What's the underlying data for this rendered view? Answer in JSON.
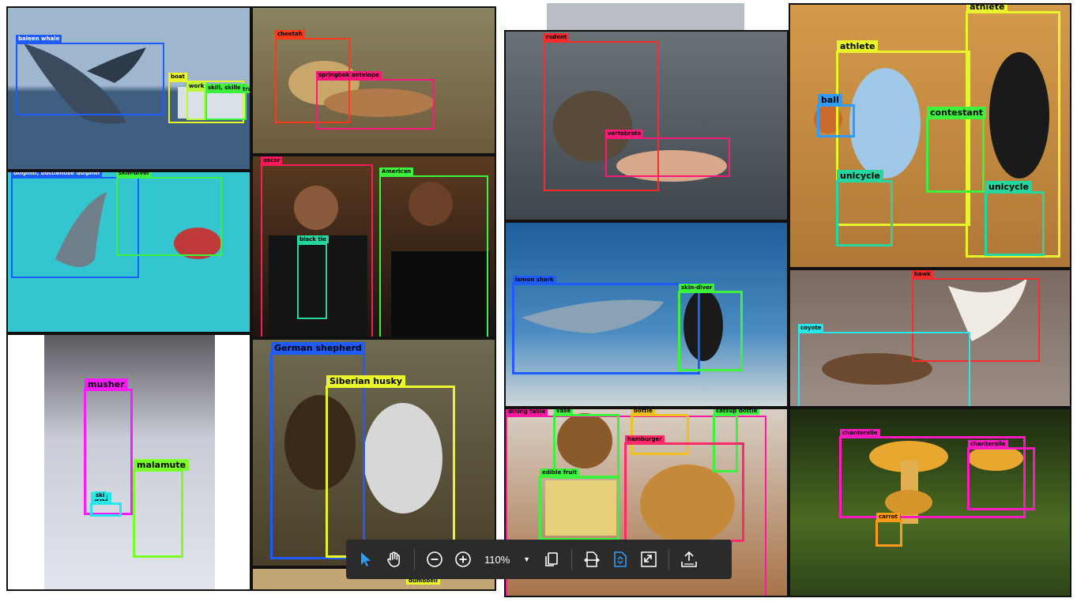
{
  "canvas": {
    "background": "#ffffff"
  },
  "images": {
    "whale": {
      "scene": "#4a6c8f",
      "sky": "#9fb6cf",
      "labels": {
        "baleen_whale": "baleen whale",
        "boat": "boat",
        "work": "work",
        "skill": "skill, skilled",
        "trade": "trade"
      }
    },
    "cheetah": {
      "scene": "#7d6f4e",
      "labels": {
        "cheetah": "cheetah",
        "antelope": "springbok antelope"
      }
    },
    "dolphin": {
      "scene": "#34c6d0",
      "labels": {
        "dolphin": "dolphin, bottlenose dolphin",
        "skin_diver": "skin-diver"
      }
    },
    "obama": {
      "scene": "#3a2a20",
      "labels": {
        "oscar": "oscar",
        "american": "American",
        "black_tie": "black tie"
      }
    },
    "otter": {
      "scene": "#4d5358",
      "labels": {
        "rodent": "rodent",
        "vertebrate": "vertebrate"
      }
    },
    "basketball": {
      "scene": "#c98a3c",
      "labels": {
        "athlete_right": "athlete",
        "athlete_left": "athlete",
        "ball": "ball",
        "contestant": "contestant",
        "unicycle_left": "unicycle",
        "unicycle_right": "unicycle"
      }
    },
    "shark": {
      "scene": "#2f77b0",
      "labels": {
        "lemon_shark": "lemon shark",
        "skin_diver": "skin-diver"
      }
    },
    "hawk": {
      "scene": "#8a7a70",
      "labels": {
        "hawk": "hawk",
        "coyote": "coyote"
      }
    },
    "musher": {
      "scene": "#c9ccd6",
      "labels": {
        "musher": "musher",
        "malamute": "malamute",
        "ski": "ski",
        "ski_small": "ski"
      }
    },
    "dogs": {
      "scene": "#6d6a4f",
      "labels": {
        "german_shepherd": "German shepherd",
        "husky": "Siberian husky"
      }
    },
    "food": {
      "scene": "#b9875a",
      "labels": {
        "dining_table": "dining table",
        "vase": "vase",
        "bottle": "bottle",
        "catsup": "catsup bottle",
        "hamburger": "hamburger",
        "edible_fruit": "edible fruit"
      }
    },
    "mushroom": {
      "scene": "#2f4a1c",
      "labels": {
        "chanterelle_left": "chanterelle",
        "chanterelle_right": "chanterelle",
        "carrot": "carrot"
      }
    },
    "bottom_strip": {
      "labels": {
        "dumbbell": "dumbbell"
      }
    }
  },
  "toolbar": {
    "zoom_value": "110%",
    "icons": [
      "cursor-icon",
      "hand-icon",
      "zoom-out-icon",
      "zoom-in-icon",
      "copy-icon",
      "fit-width-icon",
      "fit-page-icon",
      "fullscreen-icon",
      "upload-icon"
    ],
    "active_color": "#2f9bff"
  },
  "colors": {
    "blue": "#1f5cff",
    "green": "#3cf23c",
    "yellow": "#e9f52a",
    "red": "#ff2a2a",
    "magenta": "#ff19ff",
    "cyan": "#26e8e8",
    "pink": "#ff1a7a",
    "orange": "#ff9a1a",
    "teal": "#25d6a0",
    "lime": "#7bff2a",
    "gold": "#f0c020"
  }
}
